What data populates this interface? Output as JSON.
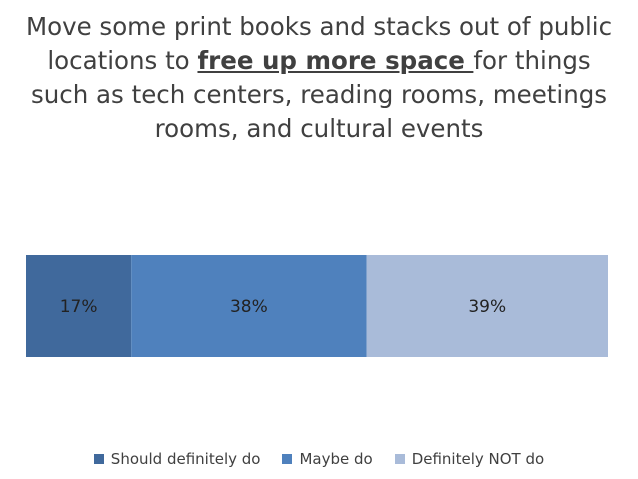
{
  "chart_data": {
    "type": "bar",
    "orientation": "horizontal",
    "stacked": true,
    "title_parts": [
      "Move some print books and stacks out of public locations to ",
      "free up more space ",
      "for things such as tech centers, reading rooms, meetings rooms, and cultural events"
    ],
    "categories": [
      ""
    ],
    "series": [
      {
        "name": "Should definitely do",
        "values": [
          17
        ],
        "label": "17%",
        "color": "#40699c"
      },
      {
        "name": "Maybe do",
        "values": [
          38
        ],
        "label": "38%",
        "color": "#4f81bd"
      },
      {
        "name": "Definitely NOT do",
        "values": [
          39
        ],
        "label": "39%",
        "color": "#a9bbd9"
      }
    ],
    "unit": "%",
    "legend_position": "bottom",
    "grid": false
  }
}
